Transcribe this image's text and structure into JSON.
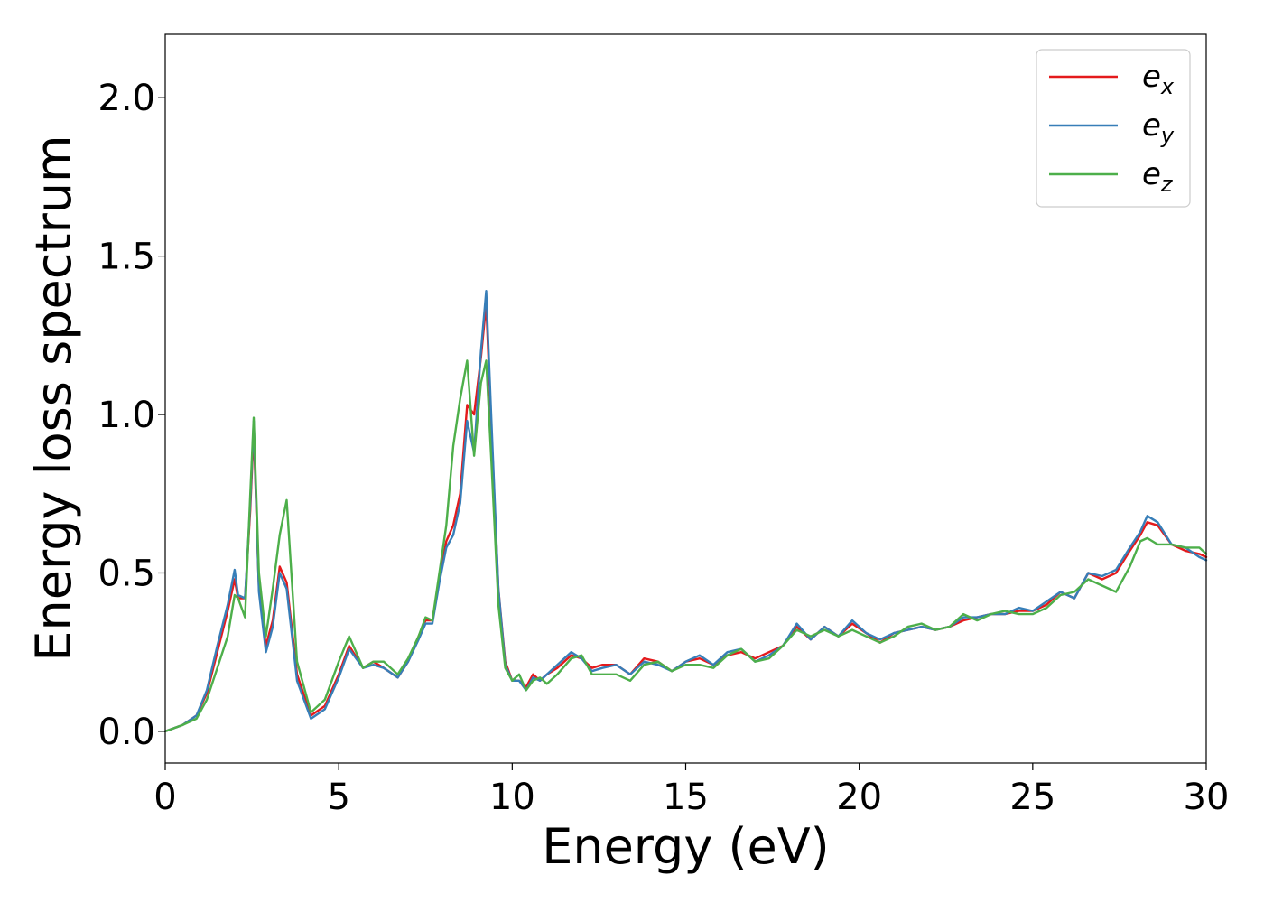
{
  "chart_data": {
    "type": "line",
    "title": "",
    "xlabel": "Energy (eV)",
    "ylabel": "Energy loss spectrum",
    "xlim": [
      0,
      30
    ],
    "ylim": [
      -0.1,
      2.2
    ],
    "xticks": [
      0,
      5,
      10,
      15,
      20,
      25,
      30
    ],
    "xtick_labels": [
      "0",
      "5",
      "10",
      "15",
      "20",
      "25",
      "30"
    ],
    "yticks": [
      0.0,
      0.5,
      1.0,
      1.5,
      2.0
    ],
    "ytick_labels": [
      "0.0",
      "0.5",
      "1.0",
      "1.5",
      "2.0"
    ],
    "grid": false,
    "legend_position": "top-right",
    "series": [
      {
        "name": "e_x",
        "label_base": "e",
        "label_sub": "x",
        "color": "#e41a1c",
        "x": [
          0,
          0.5,
          0.9,
          1.2,
          1.5,
          1.8,
          2.0,
          2.1,
          2.3,
          2.45,
          2.55,
          2.7,
          2.9,
          3.1,
          3.3,
          3.5,
          3.8,
          4.2,
          4.6,
          5.0,
          5.3,
          5.7,
          6.0,
          6.3,
          6.7,
          7.0,
          7.3,
          7.5,
          7.7,
          7.9,
          8.1,
          8.3,
          8.5,
          8.7,
          8.9,
          9.1,
          9.25,
          9.4,
          9.6,
          9.8,
          10.0,
          10.2,
          10.4,
          10.6,
          10.8,
          11.0,
          11.3,
          11.7,
          12.0,
          12.3,
          12.6,
          13.0,
          13.4,
          13.8,
          14.2,
          14.6,
          15.0,
          15.4,
          15.8,
          16.2,
          16.6,
          17.0,
          17.4,
          17.8,
          18.2,
          18.6,
          19.0,
          19.4,
          19.8,
          20.2,
          20.6,
          21.0,
          21.4,
          21.8,
          22.2,
          22.6,
          23.0,
          23.4,
          23.8,
          24.2,
          24.6,
          25.0,
          25.4,
          25.8,
          26.2,
          26.6,
          27.0,
          27.4,
          27.8,
          28.1,
          28.3,
          28.6,
          29.0,
          29.4,
          29.8,
          30.0
        ],
        "y": [
          0,
          0.02,
          0.05,
          0.12,
          0.25,
          0.38,
          0.48,
          0.42,
          0.42,
          0.7,
          0.95,
          0.45,
          0.27,
          0.35,
          0.52,
          0.47,
          0.18,
          0.05,
          0.08,
          0.18,
          0.27,
          0.2,
          0.22,
          0.2,
          0.17,
          0.22,
          0.3,
          0.35,
          0.35,
          0.48,
          0.6,
          0.65,
          0.75,
          1.03,
          1.0,
          1.18,
          1.35,
          0.95,
          0.45,
          0.22,
          0.16,
          0.16,
          0.14,
          0.18,
          0.16,
          0.18,
          0.2,
          0.24,
          0.23,
          0.2,
          0.21,
          0.21,
          0.18,
          0.23,
          0.22,
          0.19,
          0.22,
          0.23,
          0.21,
          0.24,
          0.25,
          0.23,
          0.25,
          0.27,
          0.33,
          0.29,
          0.33,
          0.3,
          0.34,
          0.31,
          0.28,
          0.31,
          0.32,
          0.33,
          0.32,
          0.33,
          0.35,
          0.36,
          0.37,
          0.37,
          0.38,
          0.38,
          0.4,
          0.44,
          0.42,
          0.5,
          0.48,
          0.5,
          0.57,
          0.62,
          0.66,
          0.65,
          0.59,
          0.57,
          0.56,
          0.55
        ]
      },
      {
        "name": "e_y",
        "label_base": "e",
        "label_sub": "y",
        "color": "#377eb8",
        "x": [
          0,
          0.5,
          0.9,
          1.2,
          1.5,
          1.8,
          2.0,
          2.1,
          2.3,
          2.45,
          2.55,
          2.7,
          2.9,
          3.1,
          3.3,
          3.5,
          3.8,
          4.2,
          4.6,
          5.0,
          5.3,
          5.7,
          6.0,
          6.3,
          6.7,
          7.0,
          7.3,
          7.5,
          7.7,
          7.9,
          8.1,
          8.3,
          8.5,
          8.7,
          8.9,
          9.1,
          9.25,
          9.4,
          9.6,
          9.8,
          10.0,
          10.2,
          10.4,
          10.6,
          10.8,
          11.0,
          11.3,
          11.7,
          12.0,
          12.3,
          12.6,
          13.0,
          13.4,
          13.8,
          14.2,
          14.6,
          15.0,
          15.4,
          15.8,
          16.2,
          16.6,
          17.0,
          17.4,
          17.8,
          18.2,
          18.6,
          19.0,
          19.4,
          19.8,
          20.2,
          20.6,
          21.0,
          21.4,
          21.8,
          22.2,
          22.6,
          23.0,
          23.4,
          23.8,
          24.2,
          24.6,
          25.0,
          25.4,
          25.8,
          26.2,
          26.6,
          27.0,
          27.4,
          27.8,
          28.1,
          28.3,
          28.6,
          29.0,
          29.4,
          29.8,
          30.0
        ],
        "y": [
          0,
          0.02,
          0.05,
          0.13,
          0.27,
          0.4,
          0.51,
          0.43,
          0.42,
          0.72,
          0.98,
          0.44,
          0.25,
          0.33,
          0.5,
          0.45,
          0.16,
          0.04,
          0.07,
          0.17,
          0.26,
          0.2,
          0.21,
          0.2,
          0.17,
          0.22,
          0.29,
          0.34,
          0.34,
          0.47,
          0.58,
          0.62,
          0.72,
          0.98,
          0.88,
          1.2,
          1.39,
          0.98,
          0.45,
          0.21,
          0.16,
          0.16,
          0.13,
          0.17,
          0.16,
          0.18,
          0.21,
          0.25,
          0.23,
          0.19,
          0.2,
          0.21,
          0.18,
          0.22,
          0.21,
          0.19,
          0.22,
          0.24,
          0.21,
          0.25,
          0.26,
          0.22,
          0.24,
          0.27,
          0.34,
          0.29,
          0.33,
          0.3,
          0.35,
          0.31,
          0.29,
          0.31,
          0.32,
          0.33,
          0.32,
          0.33,
          0.36,
          0.36,
          0.37,
          0.37,
          0.39,
          0.38,
          0.41,
          0.44,
          0.42,
          0.5,
          0.49,
          0.51,
          0.58,
          0.63,
          0.68,
          0.66,
          0.59,
          0.58,
          0.55,
          0.54
        ]
      },
      {
        "name": "e_z",
        "label_base": "e",
        "label_sub": "z",
        "color": "#4daf4a",
        "x": [
          0,
          0.5,
          0.9,
          1.2,
          1.5,
          1.8,
          2.0,
          2.1,
          2.3,
          2.45,
          2.55,
          2.7,
          2.9,
          3.1,
          3.3,
          3.5,
          3.8,
          4.2,
          4.6,
          5.0,
          5.3,
          5.7,
          6.0,
          6.3,
          6.7,
          7.0,
          7.3,
          7.5,
          7.7,
          7.9,
          8.1,
          8.3,
          8.5,
          8.7,
          8.9,
          9.1,
          9.25,
          9.4,
          9.6,
          9.8,
          10.0,
          10.2,
          10.4,
          10.6,
          10.8,
          11.0,
          11.3,
          11.7,
          12.0,
          12.3,
          12.6,
          13.0,
          13.4,
          13.8,
          14.2,
          14.6,
          15.0,
          15.4,
          15.8,
          16.2,
          16.6,
          17.0,
          17.4,
          17.8,
          18.2,
          18.6,
          19.0,
          19.4,
          19.8,
          20.2,
          20.6,
          21.0,
          21.4,
          21.8,
          22.2,
          22.6,
          23.0,
          23.4,
          23.8,
          24.2,
          24.6,
          25.0,
          25.4,
          25.8,
          26.2,
          26.6,
          27.0,
          27.4,
          27.8,
          28.1,
          28.3,
          28.6,
          29.0,
          29.4,
          29.8,
          30.0
        ],
        "y": [
          0,
          0.02,
          0.04,
          0.1,
          0.2,
          0.3,
          0.43,
          0.42,
          0.36,
          0.75,
          0.99,
          0.5,
          0.3,
          0.45,
          0.62,
          0.73,
          0.22,
          0.06,
          0.1,
          0.22,
          0.3,
          0.2,
          0.22,
          0.22,
          0.18,
          0.23,
          0.3,
          0.36,
          0.35,
          0.5,
          0.65,
          0.9,
          1.05,
          1.17,
          0.87,
          1.1,
          1.17,
          0.85,
          0.4,
          0.2,
          0.16,
          0.18,
          0.13,
          0.16,
          0.17,
          0.15,
          0.18,
          0.23,
          0.24,
          0.18,
          0.18,
          0.18,
          0.16,
          0.21,
          0.22,
          0.19,
          0.21,
          0.21,
          0.2,
          0.24,
          0.26,
          0.22,
          0.23,
          0.27,
          0.32,
          0.3,
          0.32,
          0.3,
          0.32,
          0.3,
          0.28,
          0.3,
          0.33,
          0.34,
          0.32,
          0.33,
          0.37,
          0.35,
          0.37,
          0.38,
          0.37,
          0.37,
          0.39,
          0.43,
          0.44,
          0.48,
          0.46,
          0.44,
          0.52,
          0.6,
          0.61,
          0.59,
          0.59,
          0.58,
          0.58,
          0.56
        ]
      }
    ]
  }
}
